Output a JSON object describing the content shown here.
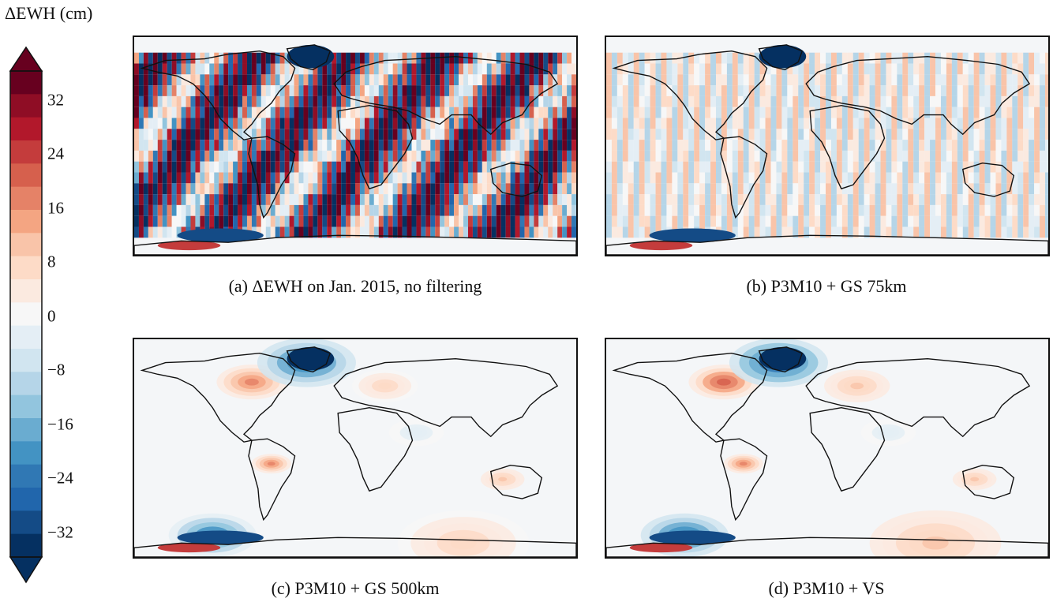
{
  "colorbar": {
    "title": "ΔEWH (cm)",
    "ticks": [
      "32",
      "24",
      "16",
      "8",
      "0",
      "−8",
      "−16",
      "−24",
      "−32"
    ],
    "colors": [
      "#67001f",
      "#8f0d25",
      "#b2182b",
      "#c43c3c",
      "#d6604d",
      "#e58267",
      "#f4a582",
      "#f9c4a9",
      "#fddbc7",
      "#fbeae0",
      "#f7f7f7",
      "#e4eef5",
      "#d1e5f0",
      "#b5d5e8",
      "#92c5de",
      "#6aacd0",
      "#4393c3",
      "#3078b4",
      "#2166ac",
      "#144b86",
      "#053061"
    ]
  },
  "panels": [
    {
      "caption": "(a) ΔEWH on Jan. 2015, no filtering",
      "intensity": 1.0,
      "noise": "heavy"
    },
    {
      "caption": "(b) P3M10 + GS 75km",
      "intensity": 0.6,
      "noise": "medium"
    },
    {
      "caption": "(c) P3M10 + GS 500km",
      "intensity": 0.2,
      "noise": "smooth"
    },
    {
      "caption": "(d) P3M10 + VS",
      "intensity": 0.25,
      "noise": "smooth"
    }
  ]
}
